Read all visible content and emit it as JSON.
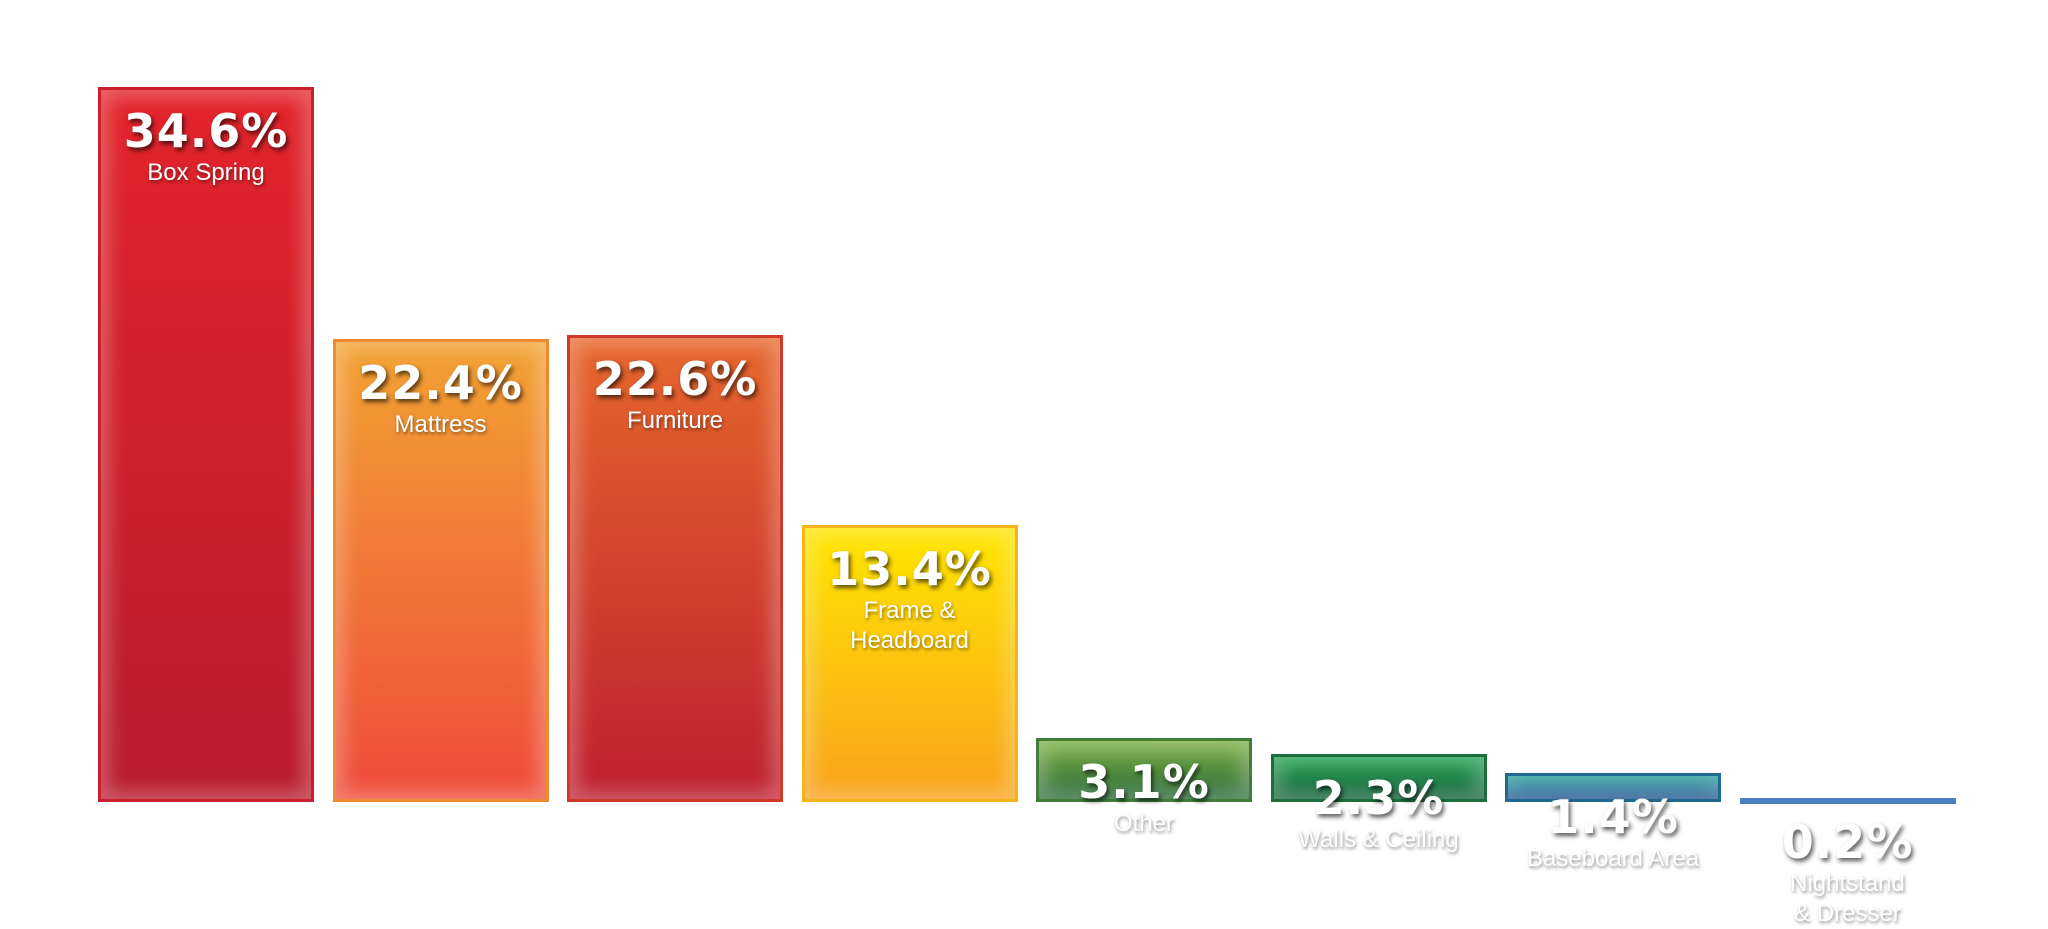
{
  "chart_data": {
    "type": "bar",
    "title": "",
    "xlabel": "",
    "ylabel": "",
    "ylim": [
      0,
      34.6
    ],
    "grid": false,
    "legend": "none",
    "categories": [
      "Box Spring",
      "Mattress",
      "Furniture",
      "Frame & Headboard",
      "Other",
      "Walls & Ceiling",
      "Baseboard Area",
      "Nightstand & Dresser"
    ],
    "values": [
      34.6,
      22.4,
      22.6,
      13.4,
      3.1,
      2.3,
      1.4,
      0.2
    ],
    "value_labels": [
      "34.6%",
      "22.4%",
      "22.6%",
      "13.4%",
      "3.1%",
      "2.3%",
      "1.4%",
      "0.2%"
    ],
    "category_label_lines": [
      [
        "Box Spring"
      ],
      [
        "Mattress"
      ],
      [
        "Furniture"
      ],
      [
        "Frame &",
        "Headboard"
      ],
      [
        "Other"
      ],
      [
        "Walls & Ceiling"
      ],
      [
        "Baseboard Area"
      ],
      [
        "Nightstand",
        "& Dresser"
      ]
    ],
    "colors": [
      {
        "top": "#e3242b",
        "bottom": "#b81c2e",
        "border": "#c8202c"
      },
      {
        "top": "#f2a233",
        "bottom": "#ef4b3a",
        "border": "#ee8a30"
      },
      {
        "top": "#e6672d",
        "bottom": "#bf1f2f",
        "border": "#cf3a2a"
      },
      {
        "top": "#ffe600",
        "bottom": "#f9a21c",
        "border": "#f7b21c"
      },
      {
        "top": "#7cae43",
        "bottom": "#2b6b3a",
        "border": "#3f7f3a"
      },
      {
        "top": "#219f4f",
        "bottom": "#14613a",
        "border": "#1a6f3c"
      },
      {
        "top": "#1f9a96",
        "bottom": "#1d4f8f",
        "border": "#1f6a8f"
      },
      {
        "top": "#6ea7dd",
        "bottom": "#1e55a5",
        "border": "#4a7fc4"
      }
    ]
  }
}
